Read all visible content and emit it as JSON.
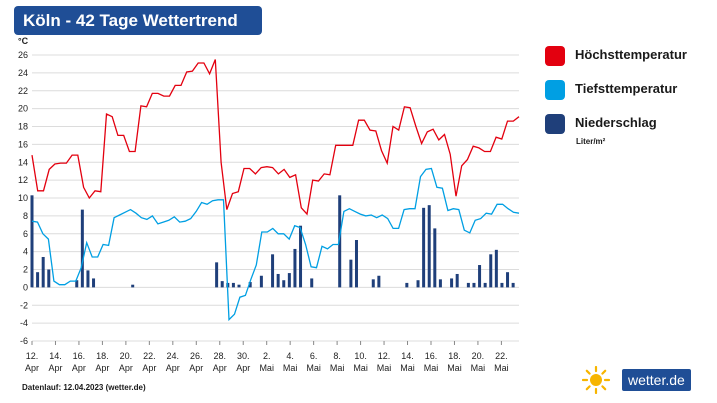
{
  "header": {
    "title": "Köln - 42 Tage Wettertrend"
  },
  "legend": {
    "items": [
      {
        "label": "Höchsttemperatur",
        "color": "#e3000f"
      },
      {
        "label": "Tiefsttemperatur",
        "color": "#009fe3"
      },
      {
        "label": "Niederschlag",
        "color": "#1f3f7a"
      }
    ],
    "precip_unit": "Liter/m²"
  },
  "footer": {
    "text": "Datenlauf: 12.04.2023 (wetter.de)"
  },
  "logo": {
    "text": "wetter.de",
    "icon": "sun-icon"
  },
  "chart_data": {
    "type": "line",
    "ylabel": "°C",
    "ylim": [
      -6,
      26
    ],
    "yticks": [
      -6,
      -4,
      -2,
      0,
      2,
      4,
      6,
      8,
      10,
      12,
      14,
      16,
      18,
      20,
      22,
      24,
      26
    ],
    "grid": true,
    "x_ticks": [
      {
        "day": "12.",
        "month": "Apr"
      },
      {
        "day": "14.",
        "month": "Apr"
      },
      {
        "day": "16.",
        "month": "Apr"
      },
      {
        "day": "18.",
        "month": "Apr"
      },
      {
        "day": "20.",
        "month": "Apr"
      },
      {
        "day": "22.",
        "month": "Apr"
      },
      {
        "day": "24.",
        "month": "Apr"
      },
      {
        "day": "26.",
        "month": "Apr"
      },
      {
        "day": "28.",
        "month": "Apr"
      },
      {
        "day": "30.",
        "month": "Apr"
      },
      {
        "day": "2.",
        "month": "Mai"
      },
      {
        "day": "4.",
        "month": "Mai"
      },
      {
        "day": "6.",
        "month": "Mai"
      },
      {
        "day": "8.",
        "month": "Mai"
      },
      {
        "day": "10.",
        "month": "Mai"
      },
      {
        "day": "12.",
        "month": "Mai"
      },
      {
        "day": "14.",
        "month": "Mai"
      },
      {
        "day": "16.",
        "month": "Mai"
      },
      {
        "day": "18.",
        "month": "Mai"
      },
      {
        "day": "20.",
        "month": "Mai"
      },
      {
        "day": "22.",
        "month": "Mai"
      }
    ],
    "x_range": [
      0,
      41.5
    ],
    "series": [
      {
        "name": "Höchsttemperatur",
        "color": "#e3000f",
        "values": [
          14.8,
          10.8,
          10.8,
          13.2,
          13.8,
          13.9,
          13.9,
          14.8,
          14.8,
          11.2,
          10.0,
          10.8,
          10.7,
          19.4,
          19.1,
          17.0,
          17.0,
          15.2,
          15.2,
          20.3,
          20.2,
          21.7,
          21.7,
          21.4,
          21.4,
          22.6,
          22.6,
          24.1,
          24.2,
          25.1,
          25.1,
          23.9,
          25.5,
          14.0,
          8.7,
          10.5,
          10.7,
          13.3,
          13.3,
          12.7,
          13.4,
          13.5,
          13.4,
          12.7,
          13.2,
          12.3,
          12.6,
          8.9,
          8.2,
          12.0,
          11.9,
          12.7,
          12.6,
          15.9,
          15.9,
          15.9,
          15.9,
          18.7,
          18.7,
          17.6,
          17.5,
          15.3,
          13.9,
          18.0,
          17.6,
          20.2,
          20.1,
          18.0,
          16.1,
          17.4,
          17.7,
          16.5,
          17.1,
          14.9,
          10.2,
          13.6,
          14.3,
          15.8,
          15.6,
          15.2,
          15.2,
          16.8,
          16.6,
          18.6,
          18.6,
          19.1
        ]
      },
      {
        "name": "Tiefsttemperatur",
        "color": "#009fe3",
        "values": [
          7.4,
          7.3,
          6.0,
          5.4,
          0.7,
          0.3,
          0.3,
          0.7,
          0.7,
          2.2,
          5.0,
          3.4,
          3.4,
          4.8,
          4.7,
          7.8,
          8.1,
          8.4,
          8.7,
          8.3,
          7.8,
          7.6,
          8.0,
          7.1,
          7.3,
          7.5,
          7.9,
          7.3,
          7.4,
          7.7,
          8.5,
          9.5,
          9.3,
          9.7,
          9.8,
          9.8,
          -3.6,
          -3.0,
          -1.1,
          -0.9,
          0.9,
          2.5,
          6.2,
          6.2,
          6.6,
          6.0,
          6.0,
          5.4,
          6.9,
          6.7,
          4.8,
          2.3,
          2.2,
          4.6,
          4.3,
          4.8,
          4.8,
          8.5,
          8.8,
          8.5,
          8.2,
          8.0,
          8.1,
          7.8,
          8.1,
          7.7,
          6.6,
          6.6,
          8.7,
          8.8,
          8.8,
          12.4,
          13.2,
          13.3,
          11.2,
          11.1,
          8.6,
          8.8,
          8.7,
          6.4,
          6.1,
          7.5,
          7.7,
          8.3,
          8.2,
          9.3,
          9.3,
          8.8,
          8.4,
          8.3
        ]
      },
      {
        "name": "Niederschlag",
        "color": "#1f3f7a",
        "type": "bar",
        "bars": [
          [
            0,
            10.3
          ],
          [
            0.5,
            1.7
          ],
          [
            1,
            3.4
          ],
          [
            1.5,
            2.0
          ],
          [
            4,
            0.8
          ],
          [
            4.5,
            8.7
          ],
          [
            5,
            1.9
          ],
          [
            5.5,
            1.0
          ],
          [
            9,
            0.3
          ],
          [
            16.5,
            2.8
          ],
          [
            17,
            0.7
          ],
          [
            17.5,
            0.5
          ],
          [
            18,
            0.5
          ],
          [
            18.5,
            0.3
          ],
          [
            19.5,
            0.6
          ],
          [
            20.5,
            1.3
          ],
          [
            21.5,
            3.7
          ],
          [
            22,
            1.5
          ],
          [
            22.5,
            0.8
          ],
          [
            23,
            1.6
          ],
          [
            23.5,
            4.3
          ],
          [
            24,
            6.9
          ],
          [
            25,
            1.0
          ],
          [
            27.5,
            10.3
          ],
          [
            28.5,
            3.1
          ],
          [
            29,
            5.3
          ],
          [
            30.5,
            0.9
          ],
          [
            31,
            1.3
          ],
          [
            33.5,
            0.5
          ],
          [
            34.5,
            0.8
          ],
          [
            35,
            8.9
          ],
          [
            35.5,
            9.2
          ],
          [
            36,
            6.6
          ],
          [
            36.5,
            0.9
          ],
          [
            37.5,
            1.0
          ],
          [
            38,
            1.5
          ],
          [
            39,
            0.5
          ],
          [
            39.5,
            0.5
          ],
          [
            40,
            2.5
          ],
          [
            40.5,
            0.5
          ],
          [
            41,
            3.7
          ],
          [
            41.5,
            4.2
          ],
          [
            42,
            0.5
          ],
          [
            42.5,
            1.7
          ],
          [
            43,
            0.5
          ]
        ]
      }
    ]
  }
}
